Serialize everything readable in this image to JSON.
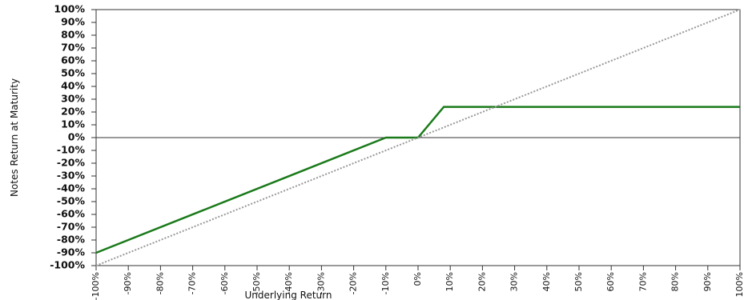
{
  "chart_data": {
    "type": "line",
    "x_label": "Underlying Return",
    "y_label": "Notes Return at Maturity",
    "series": [
      {
        "color": "#1a7a1a",
        "linestyle": "solid",
        "x": [
          -100,
          -10,
          0,
          8,
          100
        ],
        "values": [
          -90,
          0,
          0,
          24,
          24
        ]
      },
      {
        "color": "#999999",
        "linestyle": "dotted",
        "x": [
          -100,
          100
        ],
        "values": [
          -100,
          100
        ]
      }
    ],
    "xlim": [
      -100,
      100
    ],
    "ylim": [
      -100,
      100
    ],
    "xticks": [
      {
        "value": -100,
        "label": "-100%"
      },
      {
        "value": -90,
        "label": "-90%"
      },
      {
        "value": -80,
        "label": "-80%"
      },
      {
        "value": -70,
        "label": "-70%"
      },
      {
        "value": -60,
        "label": "-60%"
      },
      {
        "value": -50,
        "label": "-50%"
      },
      {
        "value": -40,
        "label": "-40%"
      },
      {
        "value": -30,
        "label": "-30%"
      },
      {
        "value": -20,
        "label": "-20%"
      },
      {
        "value": -10,
        "label": "-10%"
      },
      {
        "value": 0,
        "label": "0%"
      },
      {
        "value": 10,
        "label": "10%"
      },
      {
        "value": 20,
        "label": "20%"
      },
      {
        "value": 30,
        "label": "30%"
      },
      {
        "value": 40,
        "label": "40%"
      },
      {
        "value": 50,
        "label": "50%"
      },
      {
        "value": 60,
        "label": "60%"
      },
      {
        "value": 70,
        "label": "70%"
      },
      {
        "value": 80,
        "label": "80%"
      },
      {
        "value": 90,
        "label": "90%"
      },
      {
        "value": 100,
        "label": "100%"
      }
    ],
    "yticks": [
      {
        "value": 100,
        "label": "100%"
      },
      {
        "value": 90,
        "label": "90%"
      },
      {
        "value": 80,
        "label": "80%"
      },
      {
        "value": 70,
        "label": "70%"
      },
      {
        "value": 60,
        "label": "60%"
      },
      {
        "value": 50,
        "label": "50%"
      },
      {
        "value": 40,
        "label": "40%"
      },
      {
        "value": 30,
        "label": "30%"
      },
      {
        "value": 20,
        "label": "20%"
      },
      {
        "value": 10,
        "label": "10%"
      },
      {
        "value": 0,
        "label": "0%"
      },
      {
        "value": -10,
        "label": "-10%"
      },
      {
        "value": -20,
        "label": "-20%"
      },
      {
        "value": -30,
        "label": "-30%"
      },
      {
        "value": -40,
        "label": "-40%"
      },
      {
        "value": -50,
        "label": "-50%"
      },
      {
        "value": -60,
        "label": "-60%"
      },
      {
        "value": -70,
        "label": "-70%"
      },
      {
        "value": -80,
        "label": "-80%"
      },
      {
        "value": -90,
        "label": "-90%"
      },
      {
        "value": -100,
        "label": "-100%"
      }
    ],
    "zero_line": true,
    "grid": false
  }
}
